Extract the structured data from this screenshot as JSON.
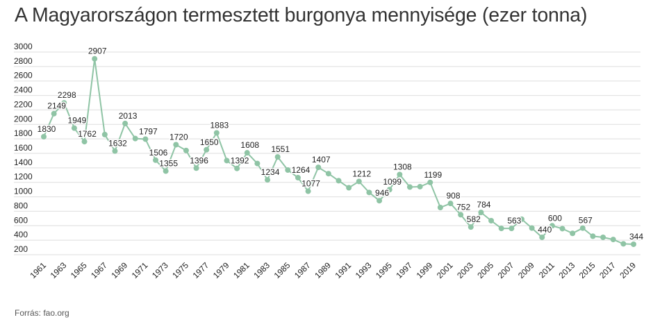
{
  "title": "A Magyarországon termesztett burgonya mennyisége (ezer tonna)",
  "source": "Forrás: fao.org",
  "colors": {
    "line": "#8fc4a5",
    "grid": "#dedede",
    "text": "#222222"
  },
  "chart_data": {
    "type": "line",
    "x": [
      1961,
      1962,
      1963,
      1964,
      1965,
      1966,
      1967,
      1968,
      1969,
      1970,
      1971,
      1972,
      1973,
      1974,
      1975,
      1976,
      1977,
      1978,
      1979,
      1980,
      1981,
      1982,
      1983,
      1984,
      1985,
      1986,
      1987,
      1988,
      1989,
      1990,
      1991,
      1992,
      1993,
      1994,
      1995,
      1996,
      1997,
      1998,
      1999,
      2000,
      2001,
      2002,
      2003,
      2004,
      2005,
      2006,
      2007,
      2008,
      2009,
      2010,
      2011,
      2012,
      2013,
      2014,
      2015,
      2016,
      2017,
      2018,
      2019
    ],
    "values": [
      1830,
      2149,
      2298,
      1949,
      1762,
      2907,
      1860,
      1632,
      2013,
      1805,
      1797,
      1506,
      1355,
      1720,
      1640,
      1396,
      1650,
      1883,
      1500,
      1392,
      1608,
      1460,
      1234,
      1551,
      1370,
      1264,
      1077,
      1407,
      1320,
      1222,
      1125,
      1212,
      1060,
      946,
      1099,
      1308,
      1135,
      1140,
      1199,
      852,
      908,
      752,
      582,
      784,
      670,
      563,
      563,
      690,
      568,
      440,
      600,
      560,
      495,
      567,
      455,
      440,
      410,
      350,
      344
    ],
    "data_labels": {
      "1961": "1830",
      "1962": "2149",
      "1963": "2298",
      "1964": "1949",
      "1965": "1762",
      "1966": "2907",
      "1968": "1632",
      "1969": "2013",
      "1971": "1797",
      "1972": "1506",
      "1973": "1355",
      "1974": "1720",
      "1976": "1396",
      "1977": "1650",
      "1978": "1883",
      "1980": "1392",
      "1981": "1608",
      "1983": "1234",
      "1984": "1551",
      "1986": "1264",
      "1987": "1077",
      "1988": "1407",
      "1992": "1212",
      "1994": "946",
      "1995": "1099",
      "1996": "1308",
      "1999": "1199",
      "2001": "908",
      "2002": "752",
      "2003": "582",
      "2004": "784",
      "2007": "563",
      "2010": "440",
      "2011": "600",
      "2014": "567",
      "2019": "344"
    },
    "x_tick_labels": [
      "1961",
      "1963",
      "1965",
      "1967",
      "1969",
      "1971",
      "1973",
      "1975",
      "1977",
      "1979",
      "1981",
      "1983",
      "1985",
      "1987",
      "1989",
      "1991",
      "1993",
      "1995",
      "1997",
      "1999",
      "2001",
      "2003",
      "2005",
      "2007",
      "2009",
      "2011",
      "2013",
      "2015",
      "2017",
      "2019"
    ],
    "y_ticks": [
      200,
      400,
      600,
      800,
      1000,
      1200,
      1400,
      1600,
      1800,
      2000,
      2200,
      2400,
      2600,
      2800,
      3000
    ],
    "ylim": [
      200,
      3000
    ],
    "grid": true,
    "legend": "none"
  }
}
